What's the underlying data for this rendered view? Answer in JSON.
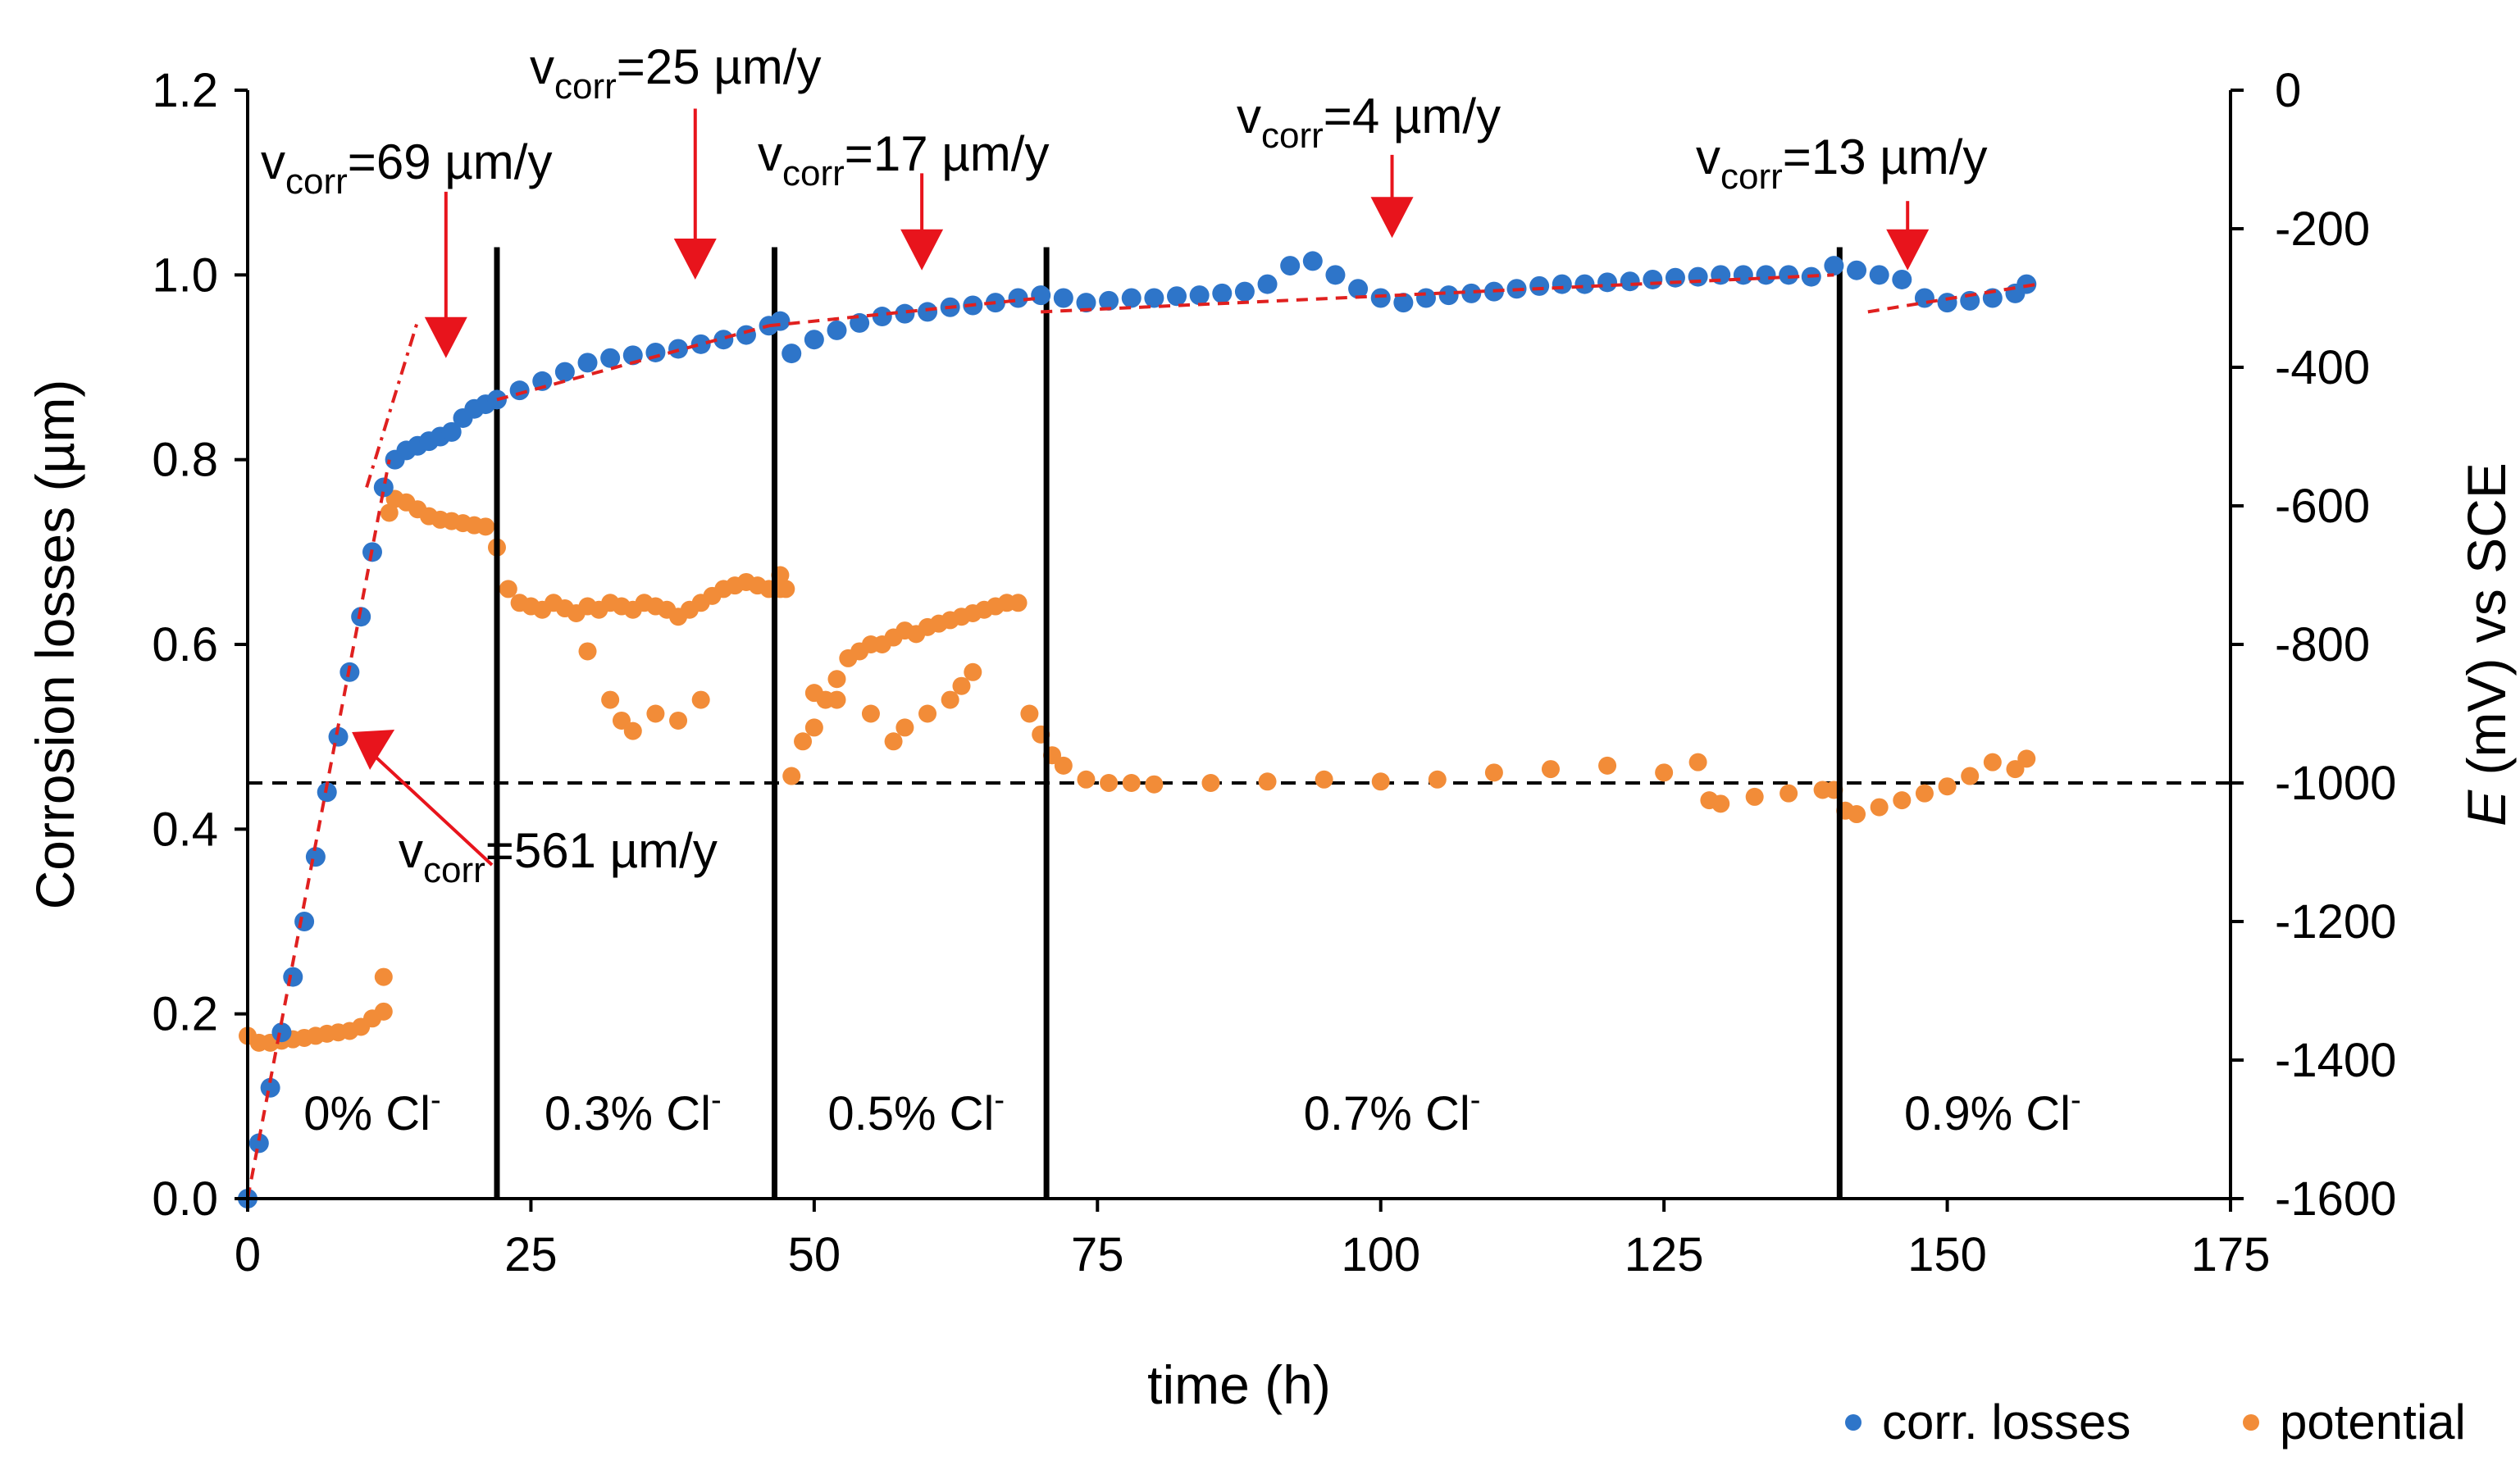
{
  "chart_data": {
    "type": "scatter",
    "xlabel": "time (h)",
    "ylabel": "Corrosion losses (µm)",
    "y2label_italic": "E",
    "y2label_rest": " (mV) vs SCE",
    "xlim": [
      0,
      175
    ],
    "ylim": [
      0,
      1.2
    ],
    "y2lim": [
      -1600,
      0
    ],
    "x_ticks": [
      "0",
      "25",
      "50",
      "75",
      "100",
      "125",
      "150",
      "175"
    ],
    "y_ticks": [
      "0.0",
      "0.2",
      "0.4",
      "0.6",
      "0.8",
      "1.0",
      "1.2"
    ],
    "y2_ticks": [
      "-1600",
      "-1400",
      "-1200",
      "-1000",
      "-800",
      "-600",
      "-400",
      "-200",
      "0"
    ],
    "grid": false,
    "legend_position": "bottom-right",
    "colors": {
      "losses": "#2e75c9",
      "potential": "#f28c38",
      "fit": "#e0201f",
      "arrow": "#e8141c"
    },
    "series": [
      {
        "name": "corr. losses",
        "axis": "left",
        "x": [
          0,
          1,
          2,
          3,
          4,
          5,
          6,
          7,
          8,
          9,
          10,
          11,
          12,
          13,
          14,
          15,
          16,
          17,
          18,
          19,
          20,
          21,
          22,
          24,
          26,
          28,
          30,
          32,
          34,
          36,
          38,
          40,
          42,
          44,
          46,
          47,
          48,
          50,
          52,
          54,
          56,
          58,
          60,
          62,
          64,
          66,
          68,
          70,
          72,
          74,
          76,
          78,
          80,
          82,
          84,
          86,
          88,
          90,
          92,
          94,
          96,
          98,
          100,
          102,
          104,
          106,
          108,
          110,
          112,
          114,
          116,
          118,
          120,
          122,
          124,
          126,
          128,
          130,
          132,
          134,
          136,
          138,
          140,
          142,
          144,
          146,
          148,
          150,
          152,
          154,
          156,
          157
        ],
        "values": [
          0.0,
          0.06,
          0.12,
          0.18,
          0.24,
          0.3,
          0.37,
          0.44,
          0.5,
          0.57,
          0.63,
          0.7,
          0.77,
          0.8,
          0.81,
          0.815,
          0.82,
          0.825,
          0.83,
          0.845,
          0.855,
          0.86,
          0.865,
          0.875,
          0.885,
          0.895,
          0.905,
          0.91,
          0.913,
          0.916,
          0.92,
          0.925,
          0.93,
          0.935,
          0.945,
          0.95,
          0.915,
          0.93,
          0.94,
          0.948,
          0.955,
          0.958,
          0.96,
          0.965,
          0.967,
          0.97,
          0.975,
          0.978,
          0.975,
          0.97,
          0.972,
          0.975,
          0.975,
          0.977,
          0.978,
          0.98,
          0.982,
          0.99,
          1.01,
          1.015,
          1.0,
          0.985,
          0.975,
          0.97,
          0.975,
          0.978,
          0.98,
          0.982,
          0.985,
          0.988,
          0.99,
          0.99,
          0.992,
          0.993,
          0.995,
          0.997,
          0.998,
          1.0,
          1.0,
          1.0,
          1.0,
          0.998,
          1.01,
          1.005,
          1.0,
          0.995,
          0.975,
          0.97,
          0.972,
          0.975,
          0.98,
          0.99
        ]
      },
      {
        "name": "potential",
        "axis": "right",
        "x": [
          0,
          1,
          2,
          3,
          4,
          5,
          6,
          7,
          8,
          9,
          10,
          11,
          12,
          12.5,
          13,
          14,
          15,
          16,
          17,
          18,
          19,
          20,
          21,
          22,
          23,
          24,
          25,
          26,
          27,
          28,
          29,
          30,
          31,
          32,
          33,
          34,
          35,
          36,
          37,
          38,
          39,
          40,
          41,
          42,
          43,
          44,
          45,
          46,
          47,
          47.5,
          48,
          49,
          50,
          51,
          52,
          53,
          54,
          55,
          56,
          57,
          58,
          59,
          60,
          61,
          62,
          63,
          64,
          65,
          66,
          67,
          68,
          69,
          70,
          71,
          72,
          74,
          76,
          78,
          80,
          85,
          90,
          95,
          100,
          105,
          110,
          115,
          120,
          125,
          128,
          129,
          130,
          133,
          136,
          139,
          140,
          141,
          142,
          144,
          146,
          148,
          150,
          152,
          154,
          156,
          157,
          12,
          30,
          32,
          33,
          34,
          36,
          38,
          40,
          47,
          50,
          52,
          55,
          57,
          58,
          60,
          62,
          63,
          64
        ],
        "values": [
          -1365,
          -1375,
          -1375,
          -1372,
          -1370,
          -1368,
          -1365,
          -1362,
          -1360,
          -1358,
          -1352,
          -1340,
          -1330,
          -610,
          -590,
          -595,
          -605,
          -615,
          -620,
          -622,
          -625,
          -628,
          -630,
          -660,
          -720,
          -740,
          -745,
          -750,
          -740,
          -748,
          -755,
          -745,
          -750,
          -740,
          -745,
          -750,
          -740,
          -745,
          -750,
          -760,
          -750,
          -740,
          -730,
          -720,
          -715,
          -710,
          -715,
          -720,
          -720,
          -720,
          -990,
          -940,
          -920,
          -880,
          -850,
          -820,
          -810,
          -800,
          -800,
          -790,
          -780,
          -785,
          -775,
          -770,
          -765,
          -760,
          -755,
          -750,
          -745,
          -740,
          -740,
          -900,
          -930,
          -960,
          -975,
          -995,
          -1000,
          -1000,
          -1002,
          -1000,
          -998,
          -995,
          -998,
          -995,
          -985,
          -980,
          -975,
          -985,
          -970,
          -1025,
          -1030,
          -1020,
          -1015,
          -1010,
          -1010,
          -1040,
          -1045,
          -1035,
          -1025,
          -1015,
          -1005,
          -990,
          -970,
          -980,
          -965,
          -1280,
          -810,
          -880,
          -910,
          -925,
          -900,
          -910,
          -880,
          -700,
          -870,
          -880,
          -900,
          -940,
          -920,
          -900,
          -880,
          -860,
          -840
        ]
      }
    ],
    "fit_lines": [
      {
        "x": [
          0,
          12.5
        ],
        "values": [
          0,
          0.8
        ]
      },
      {
        "x": [
          10.5,
          15
        ],
        "values": [
          0.77,
          0.95
        ]
      },
      {
        "x": [
          22,
          46
        ],
        "values": [
          0.865,
          0.945
        ]
      },
      {
        "x": [
          46,
          70
        ],
        "values": [
          0.945,
          0.975
        ]
      },
      {
        "x": [
          70,
          140
        ],
        "values": [
          0.96,
          1.0
        ]
      },
      {
        "x": [
          143,
          158
        ],
        "values": [
          0.96,
          0.99
        ]
      }
    ],
    "boundaries_x": [
      22,
      46.5,
      70.5,
      140.5
    ],
    "reference_potential": -1000,
    "regions": [
      {
        "center_x": 11,
        "label": "0% Cl",
        "sup": "-"
      },
      {
        "center_x": 34,
        "label": "0.3% Cl",
        "sup": "-"
      },
      {
        "center_x": 59,
        "label": "0.5% Cl",
        "sup": "-"
      },
      {
        "center_x": 101,
        "label": "0.7% Cl",
        "sup": "-"
      },
      {
        "center_x": 154,
        "label": "0.9% Cl",
        "sup": "-"
      }
    ],
    "annotations": [
      {
        "prefix": "v",
        "sub": "corr",
        "text": "=69 µm/y"
      },
      {
        "prefix": "v",
        "sub": "corr",
        "text": "=25 µm/y"
      },
      {
        "prefix": "v",
        "sub": "corr",
        "text": "=17 µm/y"
      },
      {
        "prefix": "v",
        "sub": "corr",
        "text": "=4 µm/y"
      },
      {
        "prefix": "v",
        "sub": "corr",
        "text": "=13 µm/y"
      },
      {
        "prefix": "v",
        "sub": "corr",
        "text": "=561 µm/y"
      }
    ],
    "arrows": [
      {
        "x": 17.5,
        "from": 1.09,
        "to": 0.91
      },
      {
        "x": 39.5,
        "from": 1.18,
        "to": 0.995
      },
      {
        "x": 59.5,
        "from": 1.11,
        "to": 1.005
      },
      {
        "x": 101,
        "from": 1.13,
        "to": 1.04
      },
      {
        "x": 146.5,
        "from": 1.08,
        "to": 1.005
      }
    ]
  }
}
